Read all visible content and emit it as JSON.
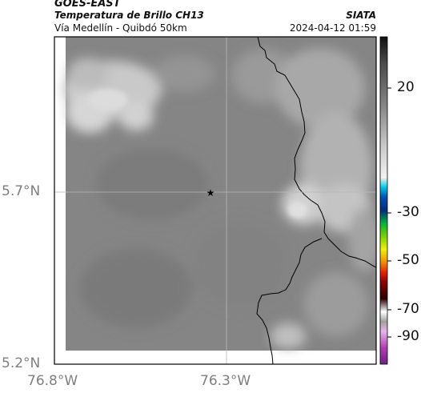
{
  "header": {
    "source": "GOES-EAST",
    "product": "Temperatura de Brillo CH13",
    "location": "Vía Medellín - Quibdó 50km",
    "brand": "SIATA",
    "datetime": "2024-04-12 01:59"
  },
  "map": {
    "lat_ticks": [
      {
        "label": "5.7°N",
        "value": 5.7
      },
      {
        "label": "5.2°N",
        "value": 5.2
      }
    ],
    "lon_ticks": [
      {
        "label": "76.8°W",
        "value": -76.8
      },
      {
        "label": "76.3°W",
        "value": -76.3
      }
    ],
    "marker": {
      "symbol": "★",
      "name": "point-of-interest"
    },
    "colors": {
      "frame": "#000000",
      "gridline": "#b8b8b8",
      "border_line": "#000000"
    }
  },
  "colorbar": {
    "labels": [
      {
        "text": "20",
        "value": 20
      },
      {
        "text": "-30",
        "value": -30
      },
      {
        "text": "-50",
        "value": -50
      },
      {
        "text": "-70",
        "value": -70
      },
      {
        "text": "-90",
        "value": -90
      }
    ]
  }
}
